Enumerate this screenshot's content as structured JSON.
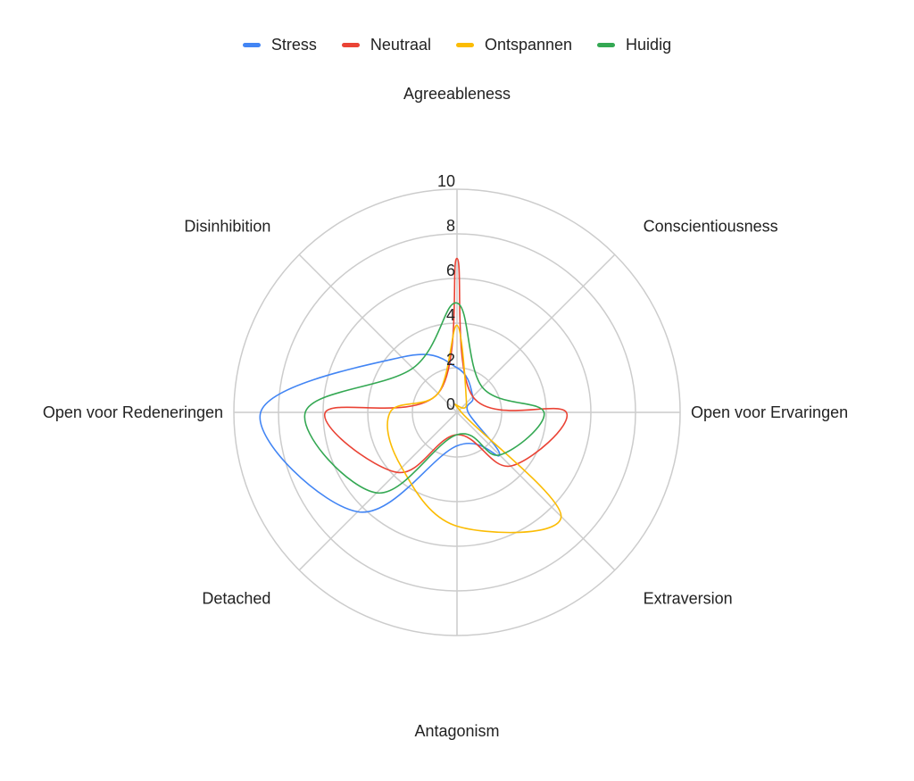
{
  "chart_data": {
    "type": "radar",
    "axes": [
      "Agreeableness",
      "Conscientiousness",
      "Open voor Ervaringen",
      "Extraversion",
      "Antagonism",
      "Detached",
      "Open voor Redeneringen",
      "Disinhibition"
    ],
    "range": [
      0,
      10
    ],
    "ticks": [
      "0",
      "2",
      "4",
      "6",
      "8",
      "10"
    ],
    "grid": true,
    "legend_position": "top",
    "series": [
      {
        "name": "Stress",
        "color": "#4285F4",
        "values": [
          2.0,
          1.0,
          0.5,
          2.7,
          1.5,
          6.3,
          8.8,
          3.5
        ]
      },
      {
        "name": "Neutraal",
        "color": "#EA4335",
        "values": [
          6.9,
          1.0,
          4.9,
          3.4,
          1.0,
          3.8,
          5.9,
          1.2
        ]
      },
      {
        "name": "Ontspannen",
        "color": "#FBBC04",
        "values": [
          3.9,
          0.6,
          0.2,
          6.6,
          5.1,
          3.5,
          3.0,
          1.2
        ]
      },
      {
        "name": "Huidig",
        "color": "#34A853",
        "values": [
          4.9,
          1.6,
          3.9,
          2.7,
          1.0,
          5.1,
          6.8,
          2.8
        ]
      }
    ]
  }
}
